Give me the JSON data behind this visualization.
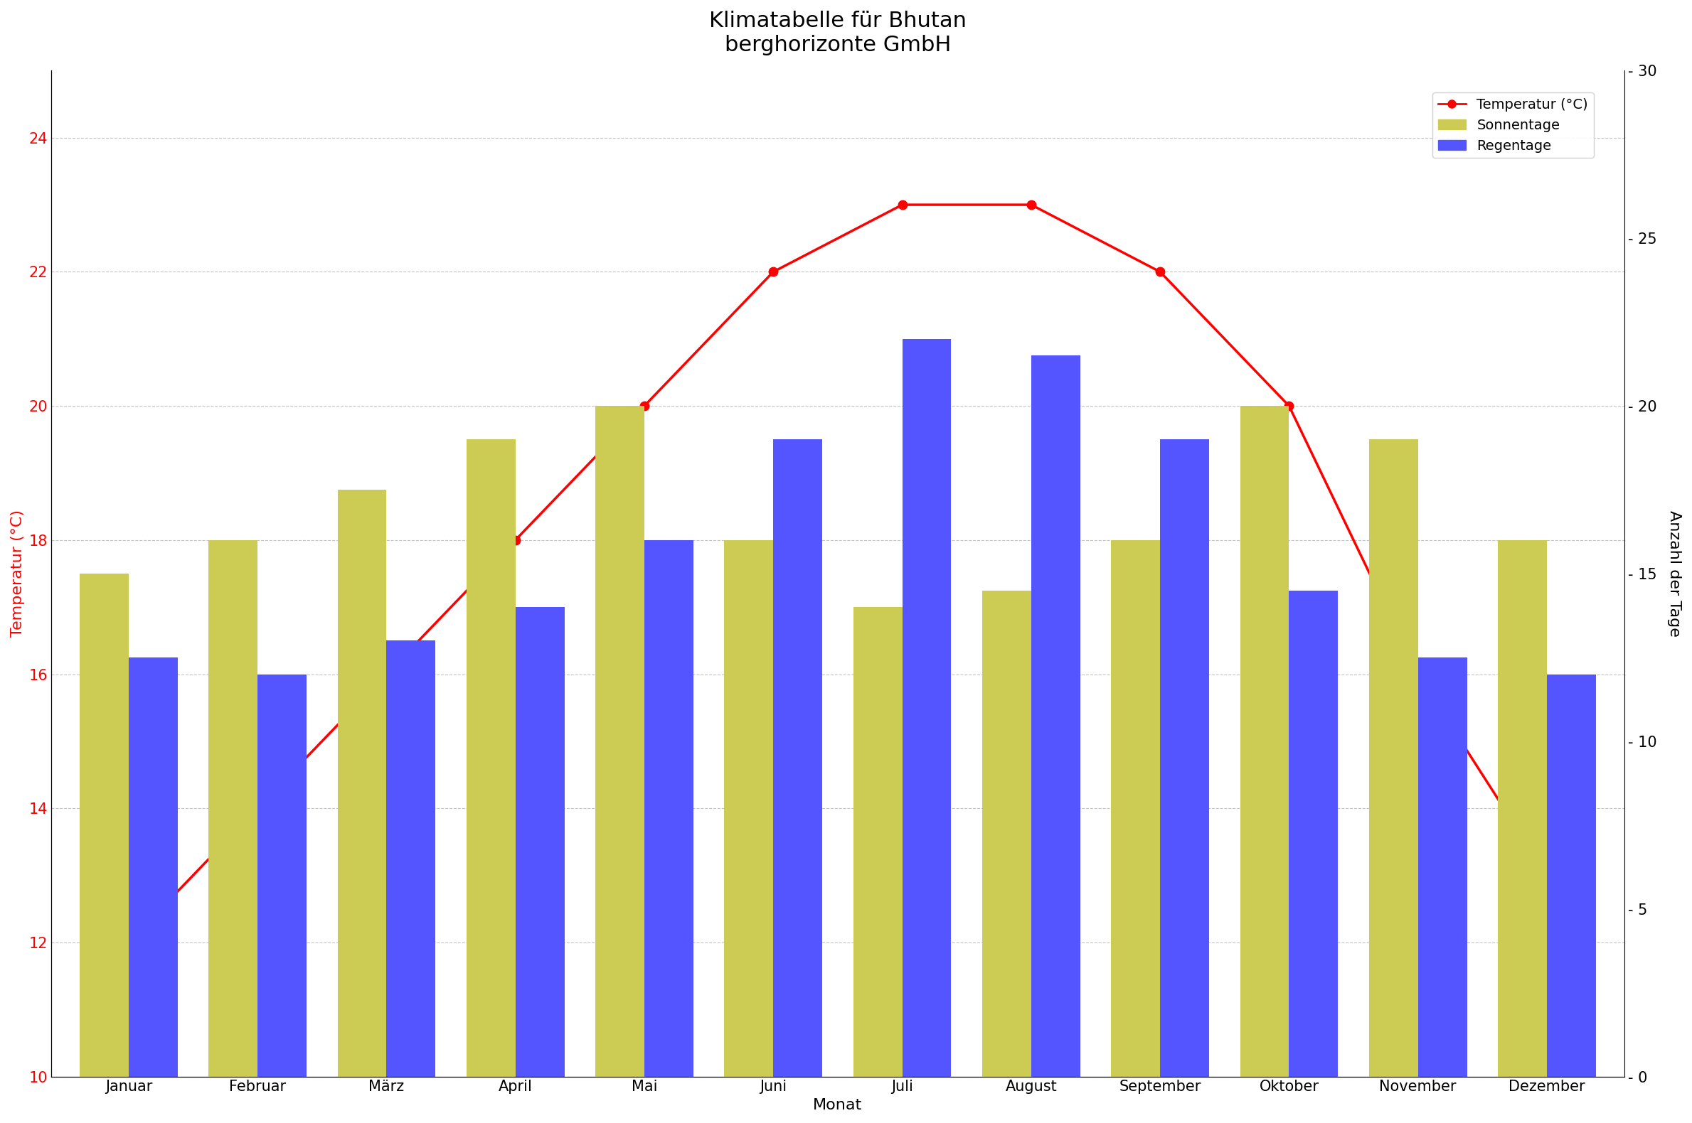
{
  "title": "Klimatabelle für Bhutan\nberghorizonte GmbH",
  "months": [
    "Januar",
    "Februar",
    "März",
    "April",
    "Mai",
    "Juni",
    "Juli",
    "August",
    "September",
    "Oktober",
    "November",
    "Dezember"
  ],
  "temperatures": [
    12,
    14,
    16,
    18,
    20,
    22,
    23,
    23,
    22,
    20,
    16,
    13
  ],
  "sunny_days": [
    15,
    16,
    17.5,
    19,
    20,
    16,
    14,
    14.5,
    16,
    20,
    19,
    16
  ],
  "rainy_days": [
    12.5,
    12,
    13,
    14,
    16,
    19,
    22,
    21.5,
    19,
    14.5,
    12.5,
    12
  ],
  "temp_color": "#ff0000",
  "sunny_color": "#cccc55",
  "rainy_color": "#5555ff",
  "ylabel_left": "Temperatur (°C)",
  "ylabel_right": "Anzahl der Tage",
  "xlabel": "Monat",
  "ylim_left": [
    10,
    25
  ],
  "ylim_right": [
    0,
    30
  ],
  "yticks_left": [
    10,
    12,
    14,
    16,
    18,
    20,
    22,
    24
  ],
  "yticks_right": [
    0,
    5,
    10,
    15,
    20,
    25,
    30
  ],
  "title_fontsize": 22,
  "axis_label_fontsize": 16,
  "tick_fontsize": 15,
  "legend_fontsize": 14,
  "bar_width": 0.38,
  "bg_color": "#ffffff",
  "grid_color": "#aaaaaa"
}
